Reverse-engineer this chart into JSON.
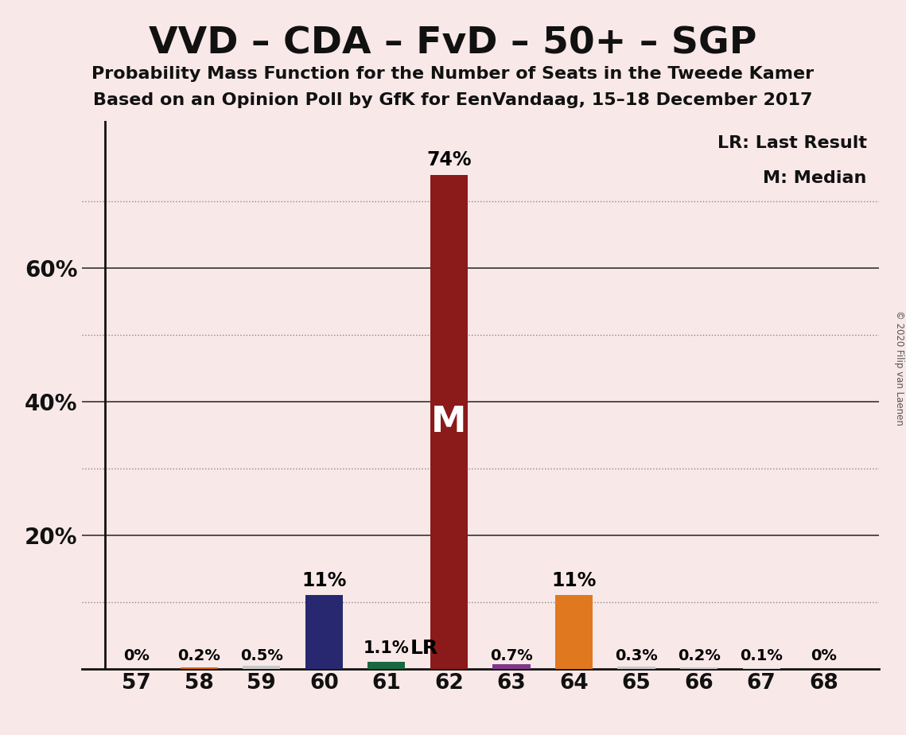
{
  "title": "VVD – CDA – FvD – 50+ – SGP",
  "subtitle1": "Probability Mass Function for the Number of Seats in the Tweede Kamer",
  "subtitle2": "Based on an Opinion Poll by GfK for EenVandaag, 15–18 December 2017",
  "copyright": "© 2020 Filip van Laenen",
  "legend_lr": "LR: Last Result",
  "legend_m": "M: Median",
  "seats": [
    57,
    58,
    59,
    60,
    61,
    62,
    63,
    64,
    65,
    66,
    67,
    68
  ],
  "probabilities": [
    0.0,
    0.2,
    0.5,
    11.0,
    1.1,
    74.0,
    0.7,
    11.0,
    0.3,
    0.2,
    0.1,
    0.0
  ],
  "bar_colors": [
    "#c8c8c8",
    "#d06818",
    "#c8c8c8",
    "#282870",
    "#186840",
    "#8b1a1a",
    "#803888",
    "#e07820",
    "#c8c8c8",
    "#c8c8c8",
    "#c8c8c8",
    "#c8c8c8"
  ],
  "label_values": [
    "0%",
    "0.2%",
    "0.5%",
    "11%",
    "1.1%",
    "74%",
    "0.7%",
    "11%",
    "0.3%",
    "0.2%",
    "0.1%",
    "0%"
  ],
  "median_seat": 62,
  "lr_seat": 61,
  "background_color": "#f9e8e8",
  "solid_grid": [
    20,
    40,
    60
  ],
  "dotted_grid": [
    10,
    30,
    50,
    70
  ],
  "ytick_positions": [
    20,
    40,
    60
  ],
  "ytick_labels": [
    "20%",
    "40%",
    "60%"
  ],
  "ylim": [
    0,
    82
  ]
}
